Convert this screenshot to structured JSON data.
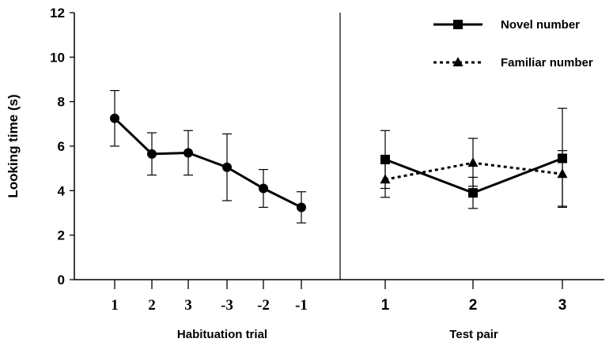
{
  "chart_data": {
    "type": "line",
    "ylabel": "Looking time (s)",
    "ylim": [
      0,
      12
    ],
    "y_ticks": [
      "0",
      "2",
      "4",
      "6",
      "8",
      "10",
      "12"
    ],
    "panels": [
      {
        "xlabel": "Habituation trial",
        "categories": [
          "1",
          "2",
          "3",
          "-3",
          "-2",
          "-1"
        ],
        "series": [
          {
            "marker": "circle",
            "line_style": "solid",
            "values": [
              7.25,
              5.65,
              5.7,
              5.05,
              4.1,
              3.25
            ],
            "err_high": [
              8.5,
              6.6,
              6.7,
              6.55,
              4.95,
              3.95
            ],
            "err_low": [
              6.0,
              4.7,
              4.7,
              3.55,
              3.25,
              2.55
            ]
          }
        ]
      },
      {
        "xlabel": "Test pair",
        "categories": [
          "1",
          "2",
          "3"
        ],
        "series": [
          {
            "name": "Novel number",
            "marker": "square",
            "line_style": "solid",
            "values": [
              5.4,
              3.9,
              5.45
            ],
            "err_high": [
              6.7,
              4.6,
              7.7
            ],
            "err_low": [
              4.1,
              3.2,
              3.25
            ]
          },
          {
            "name": "Familiar number",
            "marker": "triangle",
            "line_style": "dotted",
            "values": [
              4.5,
              5.25,
              4.75
            ],
            "err_high": [
              5.35,
              6.35,
              5.8
            ],
            "err_low": [
              3.7,
              4.2,
              3.3
            ]
          }
        ]
      }
    ],
    "legend_position": "top-right",
    "grid": false
  }
}
